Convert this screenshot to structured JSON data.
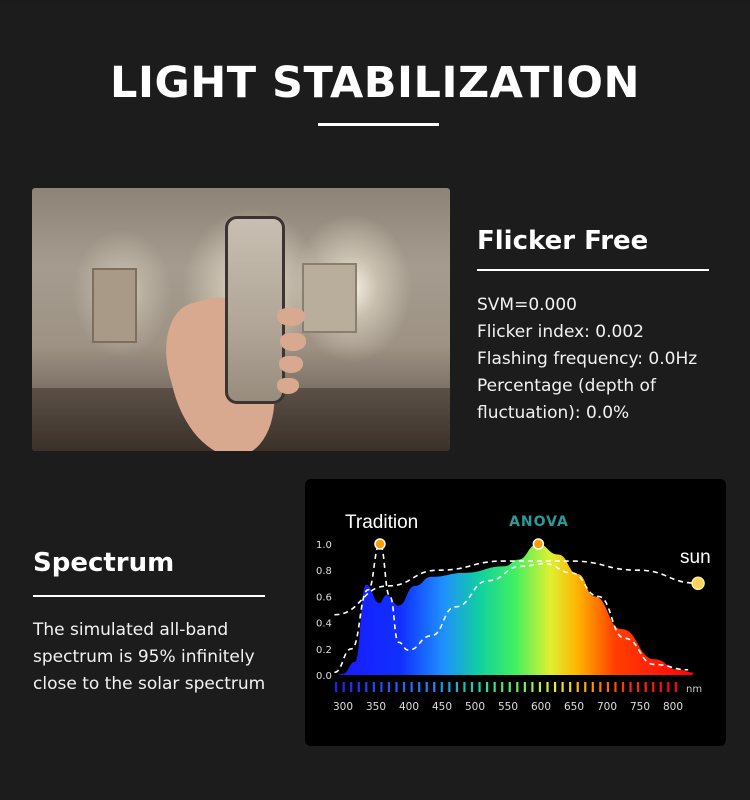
{
  "header": {
    "title": "LIGHT STABILIZATION"
  },
  "flicker": {
    "title": "Flicker Free",
    "lines": [
      "SVM=0.000",
      "Flicker index: 0.002",
      "Flashing frequency: 0.0Hz",
      "Percentage (depth of",
      "fluctuation): 0.0%"
    ]
  },
  "spectrum": {
    "title": "Spectrum",
    "lines": [
      "The simulated all-band",
      "spectrum is 95% infinitely",
      "close to the solar spectrum"
    ]
  },
  "chart_data": {
    "type": "area",
    "x_unit": "nm",
    "x_ticks": [
      300,
      350,
      400,
      450,
      500,
      550,
      600,
      650,
      700,
      750,
      800
    ],
    "y_ticks": [
      "0.0",
      "0.2",
      "0.4",
      "0.6",
      "0.8",
      "1.0"
    ],
    "ylim": [
      0,
      1
    ],
    "xlim": [
      290,
      830
    ],
    "labels": {
      "tradition": "Tradition",
      "sun": "sun",
      "brand": "ANOVA"
    },
    "series": [
      {
        "name": "ANOVA",
        "style": "rainbow-fill",
        "points": [
          [
            290,
            0
          ],
          [
            300,
            0.01
          ],
          [
            318,
            0.1
          ],
          [
            335,
            0.69
          ],
          [
            355,
            0.55
          ],
          [
            366,
            0.61
          ],
          [
            384,
            0.53
          ],
          [
            409,
            0.68
          ],
          [
            434,
            0.75
          ],
          [
            484,
            0.78
          ],
          [
            545,
            0.83
          ],
          [
            565,
            0.88
          ],
          [
            595,
            1.0
          ],
          [
            626,
            0.92
          ],
          [
            656,
            0.77
          ],
          [
            681,
            0.6
          ],
          [
            722,
            0.35
          ],
          [
            772,
            0.12
          ],
          [
            808,
            0.04
          ],
          [
            830,
            0.02
          ]
        ]
      },
      {
        "name": "Tradition",
        "style": "dashed",
        "points": [
          [
            287,
            0.02
          ],
          [
            313,
            0.2
          ],
          [
            338,
            0.65
          ],
          [
            356,
            1.0
          ],
          [
            371,
            0.6
          ],
          [
            384,
            0.25
          ],
          [
            399,
            0.19
          ],
          [
            434,
            0.3
          ],
          [
            470,
            0.52
          ],
          [
            520,
            0.72
          ],
          [
            570,
            0.83
          ],
          [
            606,
            0.85
          ],
          [
            646,
            0.78
          ],
          [
            687,
            0.6
          ],
          [
            727,
            0.28
          ],
          [
            772,
            0.08
          ],
          [
            823,
            0.04
          ]
        ]
      },
      {
        "name": "sun",
        "style": "dashed",
        "points": [
          [
            287,
            0.46
          ],
          [
            368,
            0.68
          ],
          [
            444,
            0.8
          ],
          [
            545,
            0.87
          ],
          [
            646,
            0.87
          ],
          [
            747,
            0.8
          ],
          [
            838,
            0.7
          ]
        ]
      }
    ],
    "markers": [
      {
        "label": "tradition",
        "x": 356,
        "y": 1.0
      },
      {
        "label": "brand",
        "x": 596,
        "y": 1.0
      },
      {
        "label": "sun",
        "x": 838,
        "y": 0.7
      }
    ],
    "grid": false,
    "legend": "none"
  }
}
